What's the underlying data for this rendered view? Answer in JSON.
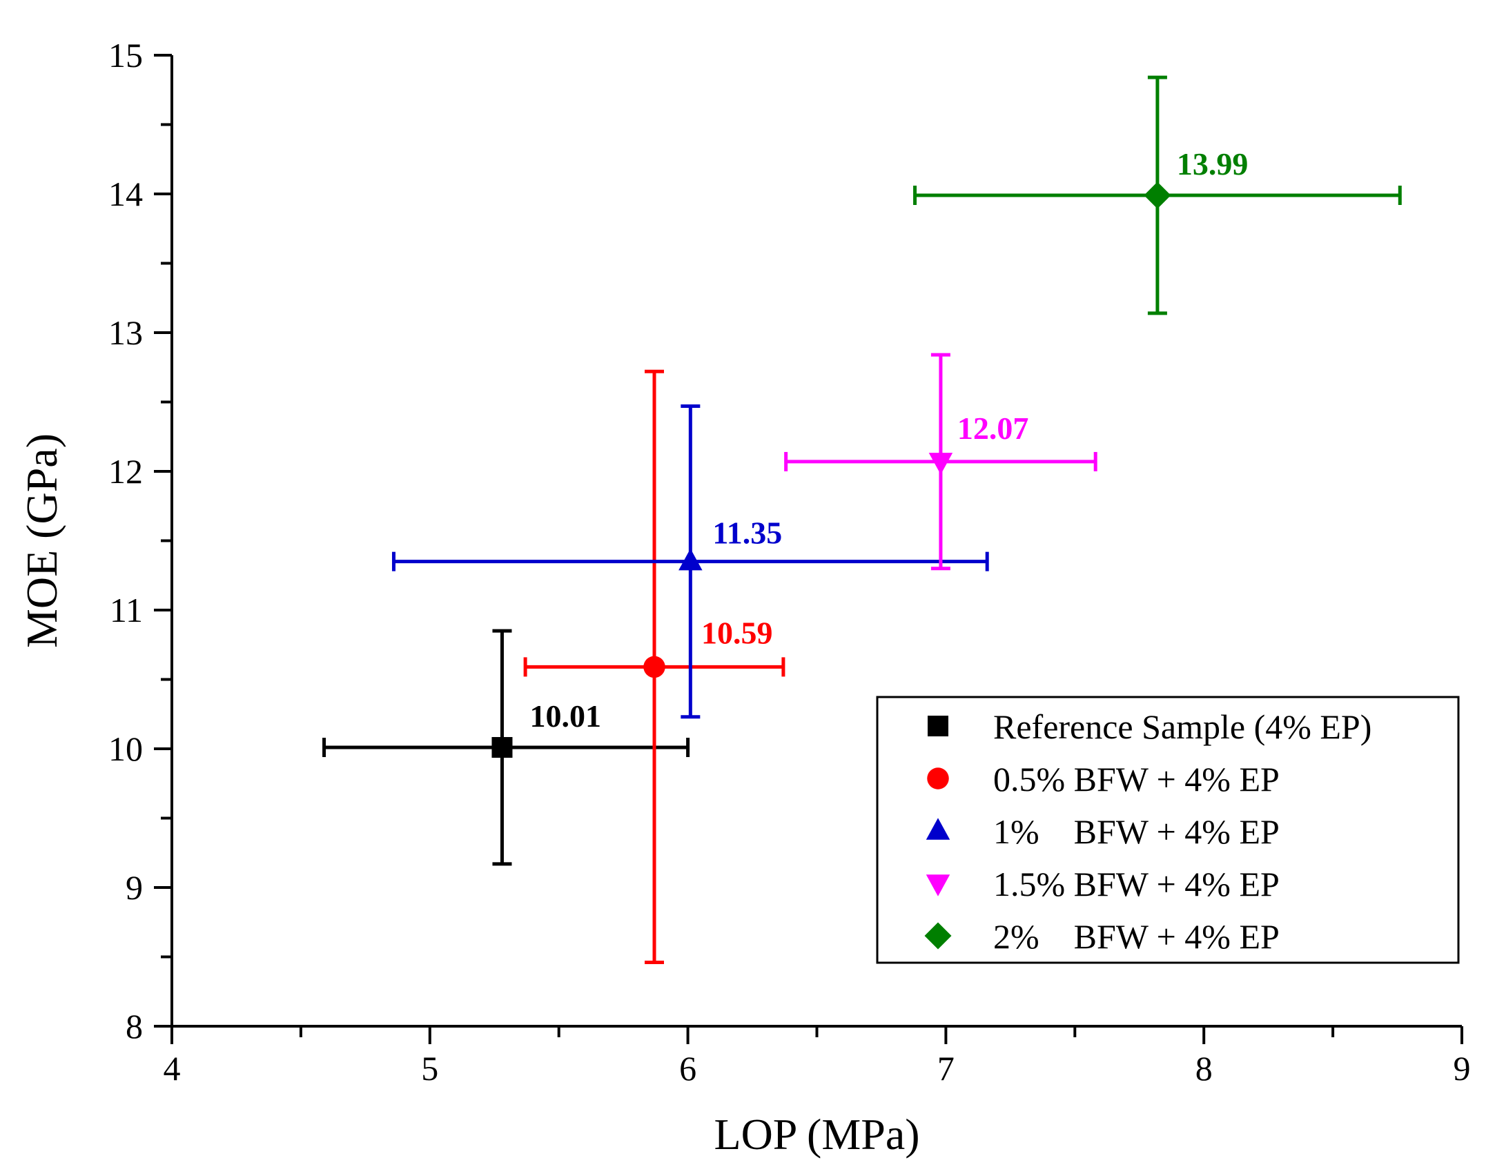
{
  "chart_data": {
    "type": "scatter",
    "title": "",
    "xlabel": "LOP (MPa)",
    "ylabel": "MOE (GPa)",
    "xlim": [
      4,
      9
    ],
    "ylim": [
      8,
      15
    ],
    "xticks": [
      "4",
      "5",
      "6",
      "7",
      "8",
      "9"
    ],
    "yticks": [
      "8",
      "9",
      "10",
      "11",
      "12",
      "13",
      "14",
      "15"
    ],
    "grid": false,
    "legend_position": "bottom-right",
    "series": [
      {
        "name": "Reference Sample (4% EP)",
        "marker": "square",
        "color": "#000000",
        "x": 5.28,
        "y": 10.01,
        "x_err_low": 4.59,
        "x_err_high": 6.0,
        "y_err_low": 9.17,
        "y_err_high": 10.85,
        "label": "10.01"
      },
      {
        "name": "0.5% BFW + 4% EP",
        "marker": "circle",
        "color": "#ff0000",
        "x": 5.87,
        "y": 10.59,
        "x_err_low": 5.37,
        "x_err_high": 6.37,
        "y_err_low": 8.46,
        "y_err_high": 12.72,
        "label": "10.59"
      },
      {
        "name": "1%    BFW + 4% EP",
        "marker": "triangle-up",
        "color": "#0000cc",
        "x": 6.01,
        "y": 11.35,
        "x_err_low": 4.86,
        "x_err_high": 7.16,
        "y_err_low": 10.23,
        "y_err_high": 12.47,
        "label": "11.35"
      },
      {
        "name": "1.5% BFW + 4% EP",
        "marker": "triangle-down",
        "color": "#ff00ff",
        "x": 6.98,
        "y": 12.07,
        "x_err_low": 6.38,
        "x_err_high": 7.58,
        "y_err_low": 11.3,
        "y_err_high": 12.84,
        "label": "12.07"
      },
      {
        "name": "2%    BFW + 4% EP",
        "marker": "diamond",
        "color": "#007f00",
        "x": 7.82,
        "y": 13.99,
        "x_err_low": 6.88,
        "x_err_high": 8.76,
        "y_err_low": 13.14,
        "y_err_high": 14.84,
        "label": "13.99"
      }
    ]
  }
}
